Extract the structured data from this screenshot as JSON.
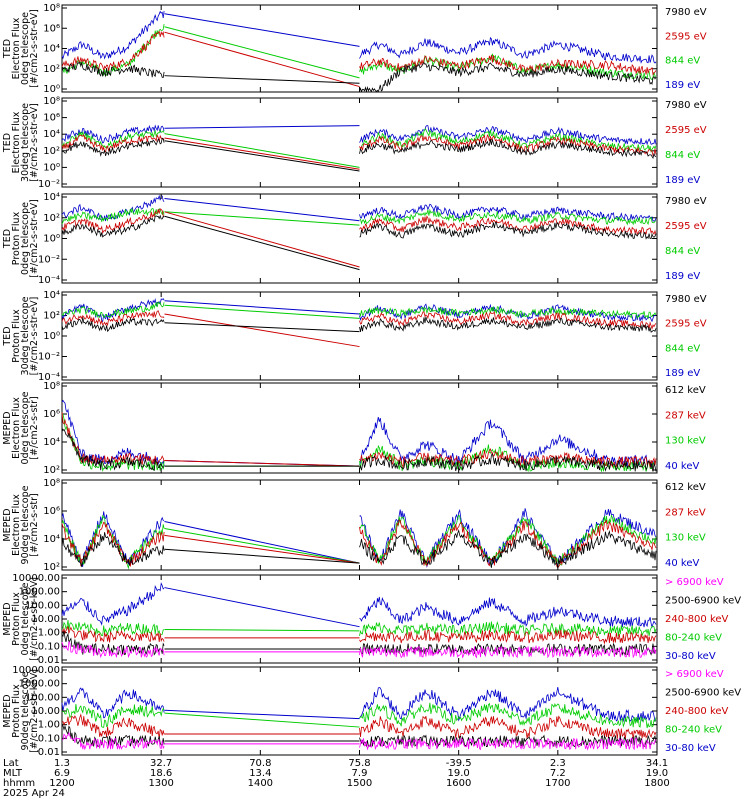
{
  "chart_data": [
    {
      "type": "line",
      "ylabel": [
        "TED",
        "Electron Flux",
        "0deg telescope",
        "[#/cm2-s-str-eV]"
      ],
      "y_tick_labels": [
        "10⁸",
        "10⁶",
        "10⁴",
        "10²",
        "10⁰"
      ],
      "ylim_log": [
        0,
        8
      ],
      "series": [
        {
          "name": "7980 eV",
          "color": "#000000",
          "values": [
            2.0,
            2.5,
            1.8,
            2.2,
            1.5,
            0.8,
            0.3,
            0.2,
            2.0,
            2.4,
            1.8,
            2.3,
            1.6,
            2.1,
            1.5,
            1.0
          ]
        },
        {
          "name": "2595 eV",
          "color": "#cc0000",
          "values": [
            2.4,
            3.0,
            2.2,
            2.8,
            5.5,
            0.5,
            2.3,
            2.8,
            2.2,
            3.0,
            2.4,
            3.1,
            2.0,
            2.6,
            2.5,
            1.8
          ]
        },
        {
          "name": "844 eV",
          "color": "#00cc00",
          "values": [
            1.8,
            2.8,
            1.8,
            2.5,
            6.0,
            1.3,
            1.8,
            2.6,
            1.9,
            3.0,
            2.2,
            3.2,
            1.9,
            2.5,
            1.8,
            1.5
          ]
        },
        {
          "name": "189 eV",
          "color": "#0000cc",
          "values": [
            3.2,
            4.4,
            3.2,
            4.2,
            7.2,
            4.2,
            3.4,
            4.4,
            3.4,
            4.6,
            3.6,
            4.7,
            3.4,
            4.4,
            3.3,
            3.0
          ]
        }
      ]
    },
    {
      "type": "line",
      "ylabel": [
        "TED",
        "Electron Flux",
        "30deg telescope",
        "[#/cm2-s-str-eV]"
      ],
      "y_tick_labels": [
        "10⁸",
        "10⁶",
        "10⁴",
        "10²",
        "10⁰",
        "10⁻²"
      ],
      "ylim_log": [
        -2,
        8
      ],
      "series": [
        {
          "name": "7980 eV",
          "color": "#000000",
          "values": [
            2.0,
            3.0,
            1.8,
            2.5,
            3.2,
            -0.2,
            2.0,
            2.8,
            1.9,
            3.0,
            2.2,
            3.1,
            1.8,
            2.8,
            2.0,
            1.6
          ]
        },
        {
          "name": "2595 eV",
          "color": "#cc0000",
          "values": [
            2.3,
            3.6,
            2.2,
            3.2,
            3.5,
            0.0,
            2.3,
            3.4,
            2.4,
            3.6,
            2.6,
            3.6,
            2.2,
            3.3,
            2.3,
            1.9
          ]
        },
        {
          "name": "844 eV",
          "color": "#00cc00",
          "values": [
            2.6,
            4.0,
            2.5,
            3.7,
            4.0,
            0.2,
            2.6,
            3.8,
            2.7,
            4.2,
            3.0,
            4.1,
            2.6,
            3.7,
            2.6,
            2.3
          ]
        },
        {
          "name": "189 eV",
          "color": "#0000cc",
          "values": [
            3.4,
            4.4,
            3.3,
            4.2,
            4.6,
            4.9,
            3.3,
            4.3,
            3.4,
            4.6,
            3.6,
            4.5,
            3.3,
            4.3,
            3.3,
            3.1
          ]
        }
      ]
    },
    {
      "type": "line",
      "ylabel": [
        "TED",
        "Proton Flux",
        "0deg telescope",
        "[#/cm2-s-str-eV]"
      ],
      "y_tick_labels": [
        "10⁴",
        "10²",
        "10⁰",
        "10⁻²",
        "10⁻⁴"
      ],
      "ylim_log": [
        -5,
        5
      ],
      "series": [
        {
          "name": "7980 eV",
          "color": "#000000",
          "values": [
            0.5,
            1.5,
            0.4,
            1.0,
            2.5,
            -3.5,
            0.5,
            1.4,
            0.3,
            1.5,
            0.4,
            1.6,
            0.6,
            1.5,
            0.6,
            0.2
          ]
        },
        {
          "name": "2595 eV",
          "color": "#cc0000",
          "values": [
            1.2,
            2.0,
            1.0,
            1.8,
            3.0,
            -3.2,
            1.0,
            2.0,
            1.0,
            2.2,
            1.2,
            2.1,
            1.1,
            2.0,
            1.0,
            0.8
          ]
        },
        {
          "name": "844 eV",
          "color": "#00cc00",
          "values": [
            2.0,
            2.6,
            2.2,
            3.0,
            3.0,
            1.5,
            1.8,
            2.5,
            2.0,
            3.0,
            2.2,
            2.8,
            2.0,
            2.6,
            2.0,
            2.0
          ]
        },
        {
          "name": "189 eV",
          "color": "#0000cc",
          "values": [
            2.5,
            3.5,
            2.2,
            3.0,
            4.5,
            2.0,
            2.5,
            3.2,
            2.5,
            3.6,
            2.6,
            3.4,
            2.5,
            3.2,
            2.5,
            2.2
          ]
        }
      ]
    },
    {
      "type": "line",
      "ylabel": [
        "TED",
        "Proton Flux",
        "30deg telescope",
        "[#/cm2-s-str-eV]"
      ],
      "y_tick_labels": [
        "10⁴",
        "10²",
        "10⁰",
        "10⁻²",
        "10⁻⁴"
      ],
      "ylim_log": [
        -5,
        5
      ],
      "series": [
        {
          "name": "7980 eV",
          "color": "#000000",
          "values": [
            1.0,
            1.8,
            0.8,
            1.6,
            1.5,
            0.5,
            0.8,
            1.6,
            0.8,
            1.8,
            1.0,
            1.8,
            0.9,
            1.7,
            1.0,
            0.8
          ]
        },
        {
          "name": "2595 eV",
          "color": "#cc0000",
          "values": [
            1.6,
            2.4,
            1.4,
            2.2,
            2.5,
            -1.2,
            1.5,
            2.3,
            1.4,
            2.5,
            1.6,
            2.4,
            1.5,
            2.3,
            1.5,
            1.2
          ]
        },
        {
          "name": "844 eV",
          "color": "#00cc00",
          "values": [
            2.4,
            3.0,
            2.4,
            2.8,
            3.5,
            2.0,
            2.6,
            2.9,
            2.6,
            3.0,
            2.6,
            3.0,
            2.5,
            2.9,
            2.5,
            2.4
          ]
        },
        {
          "name": "189 eV",
          "color": "#0000cc",
          "values": [
            2.2,
            3.4,
            2.0,
            3.2,
            4.0,
            2.5,
            2.2,
            3.2,
            2.2,
            3.4,
            2.4,
            3.3,
            2.2,
            3.2,
            2.2,
            2.0
          ]
        }
      ]
    },
    {
      "type": "line",
      "ylabel": [
        "MEPED",
        "Electron Flux",
        "0deg telescope",
        "[#/cm2-s-str]"
      ],
      "y_tick_labels": [
        "10⁸",
        "10⁶",
        "10⁴",
        "10²"
      ],
      "ylim_log": [
        1.5,
        8
      ],
      "series": [
        {
          "name": "612 keV",
          "color": "#000000",
          "values": [
            5.0,
            2.5,
            2.0,
            2.3,
            2.0,
            2.0,
            2.0,
            2.5,
            2.0,
            2.4,
            2.0,
            2.5,
            2.0,
            2.4,
            2.0,
            2.0
          ]
        },
        {
          "name": "287 keV",
          "color": "#cc0000",
          "values": [
            5.5,
            2.5,
            2.4,
            2.6,
            2.4,
            2.0,
            2.4,
            2.8,
            2.3,
            2.6,
            2.3,
            2.9,
            2.3,
            2.6,
            2.3,
            2.3
          ]
        },
        {
          "name": "130 keV",
          "color": "#00cc00",
          "values": [
            5.6,
            2.3,
            2.0,
            2.1,
            2.0,
            2.0,
            2.0,
            3.4,
            2.0,
            2.4,
            2.0,
            3.3,
            2.0,
            2.2,
            2.0,
            2.0
          ]
        },
        {
          "name": "40 keV",
          "color": "#0000cc",
          "values": [
            7.0,
            2.8,
            2.4,
            3.0,
            2.4,
            2.0,
            2.4,
            5.4,
            2.5,
            3.6,
            2.4,
            5.2,
            2.4,
            4.0,
            2.4,
            2.4
          ]
        }
      ]
    },
    {
      "type": "line",
      "ylabel": [
        "MEPED",
        "Electron Flux",
        "90deg telescope",
        "[#/cm2-s-str]"
      ],
      "y_tick_labels": [
        "10⁸",
        "10⁶",
        "10⁴",
        "10²"
      ],
      "ylim_log": [
        1.5,
        8
      ],
      "series": [
        {
          "name": "612 keV",
          "color": "#000000",
          "values": [
            3.5,
            2.0,
            4.0,
            2.0,
            3.0,
            2.0,
            3.5,
            2.0,
            4.0,
            2.0,
            4.0,
            2.0,
            4.0,
            2.0,
            4.0,
            2.5
          ]
        },
        {
          "name": "287 keV",
          "color": "#cc0000",
          "values": [
            4.5,
            2.0,
            4.8,
            2.0,
            4.0,
            2.0,
            4.5,
            2.0,
            5.0,
            2.0,
            4.8,
            2.0,
            4.8,
            2.0,
            4.8,
            3.0
          ]
        },
        {
          "name": "130 keV",
          "color": "#00cc00",
          "values": [
            5.0,
            2.0,
            5.2,
            2.0,
            4.5,
            2.0,
            5.0,
            2.0,
            5.3,
            2.0,
            5.2,
            2.0,
            5.2,
            2.0,
            5.2,
            3.5
          ]
        },
        {
          "name": "40 keV",
          "color": "#0000cc",
          "values": [
            5.5,
            2.0,
            5.6,
            2.0,
            5.0,
            2.0,
            5.5,
            2.0,
            5.7,
            2.0,
            5.6,
            2.0,
            5.6,
            2.0,
            5.6,
            4.0
          ]
        }
      ]
    },
    {
      "type": "line",
      "ylabel": [
        "MEPED",
        "Proton Flux",
        "0deg telescope",
        "[#/cm2-s-str-keV]"
      ],
      "y_tick_labels": [
        "10000.00",
        "1000.00",
        "100.00",
        "10.00",
        "1.00",
        "0.10",
        "0.01"
      ],
      "ylim_log": [
        -2,
        4.3
      ],
      "series": [
        {
          "name": "> 6900 keV",
          "color": "#ff00ff",
          "values": [
            -0.8,
            -1.0,
            -1.2,
            -1.2,
            -1.2,
            -1.2,
            -1.2,
            -1.2,
            -1.2,
            -1.2,
            -1.2,
            -1.2,
            -1.2,
            -1.2,
            -1.2,
            -1.2
          ]
        },
        {
          "name": "2500-6900 keV",
          "color": "#000000",
          "values": [
            0.0,
            -1.0,
            -1.0,
            -1.0,
            -1.0,
            -1.0,
            -1.0,
            -1.0,
            -1.0,
            -1.0,
            -1.0,
            -1.0,
            -1.0,
            -1.0,
            -1.0,
            -1.0
          ]
        },
        {
          "name": "240-800 keV",
          "color": "#cc0000",
          "values": [
            0.5,
            0.0,
            -0.2,
            0.0,
            -0.2,
            -0.2,
            -0.2,
            0.0,
            -0.2,
            0.0,
            -0.2,
            0.0,
            -0.2,
            0.0,
            -0.2,
            -0.2
          ]
        },
        {
          "name": "80-240 keV",
          "color": "#00cc00",
          "values": [
            0.8,
            0.5,
            0.3,
            0.5,
            0.4,
            0.3,
            0.3,
            0.6,
            0.3,
            0.5,
            0.3,
            0.6,
            0.3,
            0.5,
            0.3,
            0.3
          ]
        },
        {
          "name": "30-80 keV",
          "color": "#0000cc",
          "values": [
            1.6,
            2.4,
            1.0,
            1.8,
            3.4,
            0.6,
            1.0,
            2.5,
            1.0,
            2.0,
            1.0,
            2.4,
            1.0,
            1.8,
            1.0,
            0.9
          ]
        }
      ]
    },
    {
      "type": "line",
      "ylabel": [
        "MEPED",
        "Proton Flux",
        "90deg telescope",
        "[#/cm2-s-str-keV]"
      ],
      "y_tick_labels": [
        "10000.00",
        "1000.00",
        "100.00",
        "10.00",
        "1.00",
        "0.10",
        "0.01"
      ],
      "ylim_log": [
        -2,
        4.3
      ],
      "series": [
        {
          "name": "> 6900 keV",
          "color": "#ff00ff",
          "values": [
            -0.6,
            -1.2,
            -1.2,
            -1.2,
            -1.2,
            -1.2,
            -1.2,
            -1.2,
            -1.2,
            -1.2,
            -1.2,
            -1.2,
            -1.2,
            -1.2,
            -1.2,
            -1.2
          ]
        },
        {
          "name": "2500-6900 keV",
          "color": "#000000",
          "values": [
            0.0,
            -1.0,
            -1.0,
            -1.0,
            -1.0,
            -1.0,
            -1.0,
            -1.0,
            -1.0,
            -1.0,
            -1.0,
            -1.0,
            -1.0,
            -1.0,
            -1.0,
            -1.0
          ]
        },
        {
          "name": "240-800 keV",
          "color": "#cc0000",
          "values": [
            0.4,
            0.5,
            -0.5,
            0.4,
            -0.5,
            -0.5,
            -0.4,
            0.5,
            -0.5,
            0.5,
            -0.5,
            0.5,
            -0.5,
            0.5,
            -0.5,
            -0.5
          ]
        },
        {
          "name": "80-240 keV",
          "color": "#00cc00",
          "values": [
            0.8,
            1.5,
            0.3,
            1.3,
            1.0,
            0.0,
            0.4,
            1.4,
            0.4,
            1.5,
            0.4,
            1.5,
            0.4,
            1.4,
            0.4,
            0.3
          ]
        },
        {
          "name": "30-80 keV",
          "color": "#0000cc",
          "values": [
            1.5,
            2.6,
            0.8,
            2.5,
            1.2,
            0.6,
            0.8,
            2.6,
            0.8,
            2.6,
            0.8,
            2.6,
            0.8,
            2.5,
            0.8,
            0.8
          ]
        }
      ]
    }
  ],
  "x_axis": {
    "row_labels": [
      "Lat",
      "MLT",
      "hhmm"
    ],
    "date": "2025 Apr 24",
    "ticks": [
      {
        "lat": "1.3",
        "mlt": "6.9",
        "hhmm": "1200"
      },
      {
        "lat": "32.7",
        "mlt": "18.6",
        "hhmm": "1300"
      },
      {
        "lat": "70.8",
        "mlt": "13.4",
        "hhmm": "1400"
      },
      {
        "lat": "75.8",
        "mlt": "7.9",
        "hhmm": "1500"
      },
      {
        "lat": "-39.5",
        "mlt": "19.0",
        "hhmm": "1600"
      },
      {
        "lat": "2.3",
        "mlt": "7.2",
        "hhmm": "1700"
      },
      {
        "lat": "34.1",
        "mlt": "19.0",
        "hhmm": "1800"
      }
    ],
    "gap": {
      "start_hhmm": 1300,
      "end_hhmm": 1500
    }
  }
}
